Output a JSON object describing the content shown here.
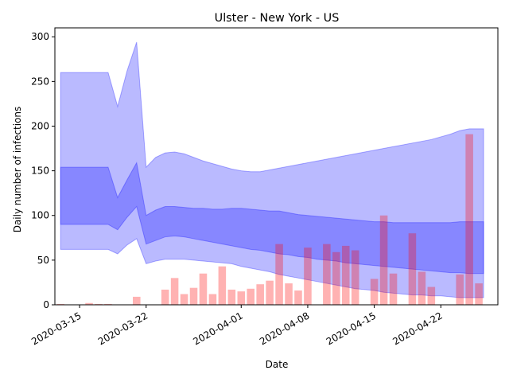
{
  "chart_data": {
    "type": "bar",
    "title": "Ulster - New York - US",
    "xlabel": "Date",
    "ylabel": "Daily number of infections",
    "ylim": [
      0,
      310
    ],
    "yticks": [
      0,
      50,
      100,
      150,
      200,
      250,
      300
    ],
    "xticks": [
      {
        "day": 2,
        "label": "2020-03-15"
      },
      {
        "day": 9,
        "label": "2020-03-22"
      },
      {
        "day": 19,
        "label": "2020-04-01"
      },
      {
        "day": 26,
        "label": "2020-04-08"
      },
      {
        "day": 33,
        "label": "2020-04-15"
      },
      {
        "day": 40,
        "label": "2020-04-22"
      }
    ],
    "x_start": "2020-03-13",
    "xlim_days": [
      -0.6,
      46.0
    ],
    "colors": {
      "bars": "#ff0000",
      "band": "#0000ff"
    },
    "observed": {
      "days": [
        0,
        1,
        2,
        3,
        4,
        5,
        6,
        7,
        8,
        9,
        10,
        11,
        12,
        13,
        14,
        15,
        16,
        17,
        18,
        19,
        20,
        21,
        22,
        23,
        24,
        25,
        26,
        27,
        28,
        29,
        30,
        31,
        32,
        33,
        34,
        35,
        36,
        37,
        38,
        39,
        40,
        41,
        42,
        43,
        44,
        45
      ],
      "values": [
        1,
        0,
        0,
        2,
        1,
        1,
        0,
        0,
        9,
        0,
        0,
        17,
        30,
        12,
        19,
        35,
        12,
        43,
        17,
        15,
        18,
        23,
        27,
        68,
        24,
        16,
        64,
        0,
        68,
        59,
        66,
        61,
        0,
        29,
        100,
        35,
        0,
        80,
        37,
        20,
        0,
        0,
        34,
        191,
        24,
        0
      ]
    },
    "estimate": {
      "days": [
        0,
        1,
        2,
        3,
        4,
        5,
        6,
        7,
        8,
        9,
        10,
        11,
        12,
        13,
        14,
        15,
        16,
        17,
        18,
        19,
        20,
        21,
        22,
        23,
        24,
        25,
        26,
        27,
        28,
        29,
        30,
        31,
        32,
        33,
        34,
        35,
        36,
        37,
        38,
        39,
        40,
        41,
        42,
        43,
        44,
        45
      ],
      "outer_upper": [
        260,
        260,
        260,
        260,
        260,
        260,
        222,
        262,
        294,
        154,
        165,
        170,
        171,
        169,
        165,
        161,
        158,
        155,
        152,
        150,
        149,
        149,
        151,
        153,
        155,
        157,
        159,
        161,
        163,
        165,
        167,
        169,
        171,
        173,
        175,
        177,
        179,
        181,
        183,
        185,
        188,
        191,
        195,
        197,
        197,
        197
      ],
      "inner_upper": [
        154,
        154,
        154,
        154,
        154,
        154,
        120,
        140,
        159,
        100,
        106,
        110,
        110,
        109,
        108,
        108,
        107,
        107,
        108,
        108,
        107,
        106,
        105,
        105,
        103,
        101,
        100,
        99,
        98,
        97,
        96,
        95,
        94,
        93,
        93,
        92,
        92,
        92,
        92,
        92,
        92,
        92,
        93,
        93,
        93,
        93
      ],
      "inner_lower": [
        90,
        90,
        90,
        90,
        90,
        90,
        84,
        98,
        110,
        68,
        72,
        76,
        77,
        76,
        74,
        72,
        70,
        68,
        66,
        64,
        62,
        61,
        59,
        57,
        56,
        54,
        53,
        51,
        50,
        49,
        47,
        46,
        45,
        44,
        43,
        42,
        41,
        40,
        39,
        38,
        37,
        36,
        36,
        35,
        35,
        35
      ],
      "outer_lower": [
        62,
        62,
        62,
        62,
        62,
        62,
        57,
        67,
        74,
        46,
        49,
        51,
        51,
        51,
        50,
        49,
        48,
        47,
        46,
        43,
        41,
        39,
        37,
        34,
        32,
        30,
        28,
        26,
        24,
        22,
        20,
        18,
        17,
        16,
        14,
        13,
        12,
        11,
        11,
        10,
        10,
        9,
        8,
        8,
        8,
        8
      ],
      "last_day": 44.5
    }
  }
}
